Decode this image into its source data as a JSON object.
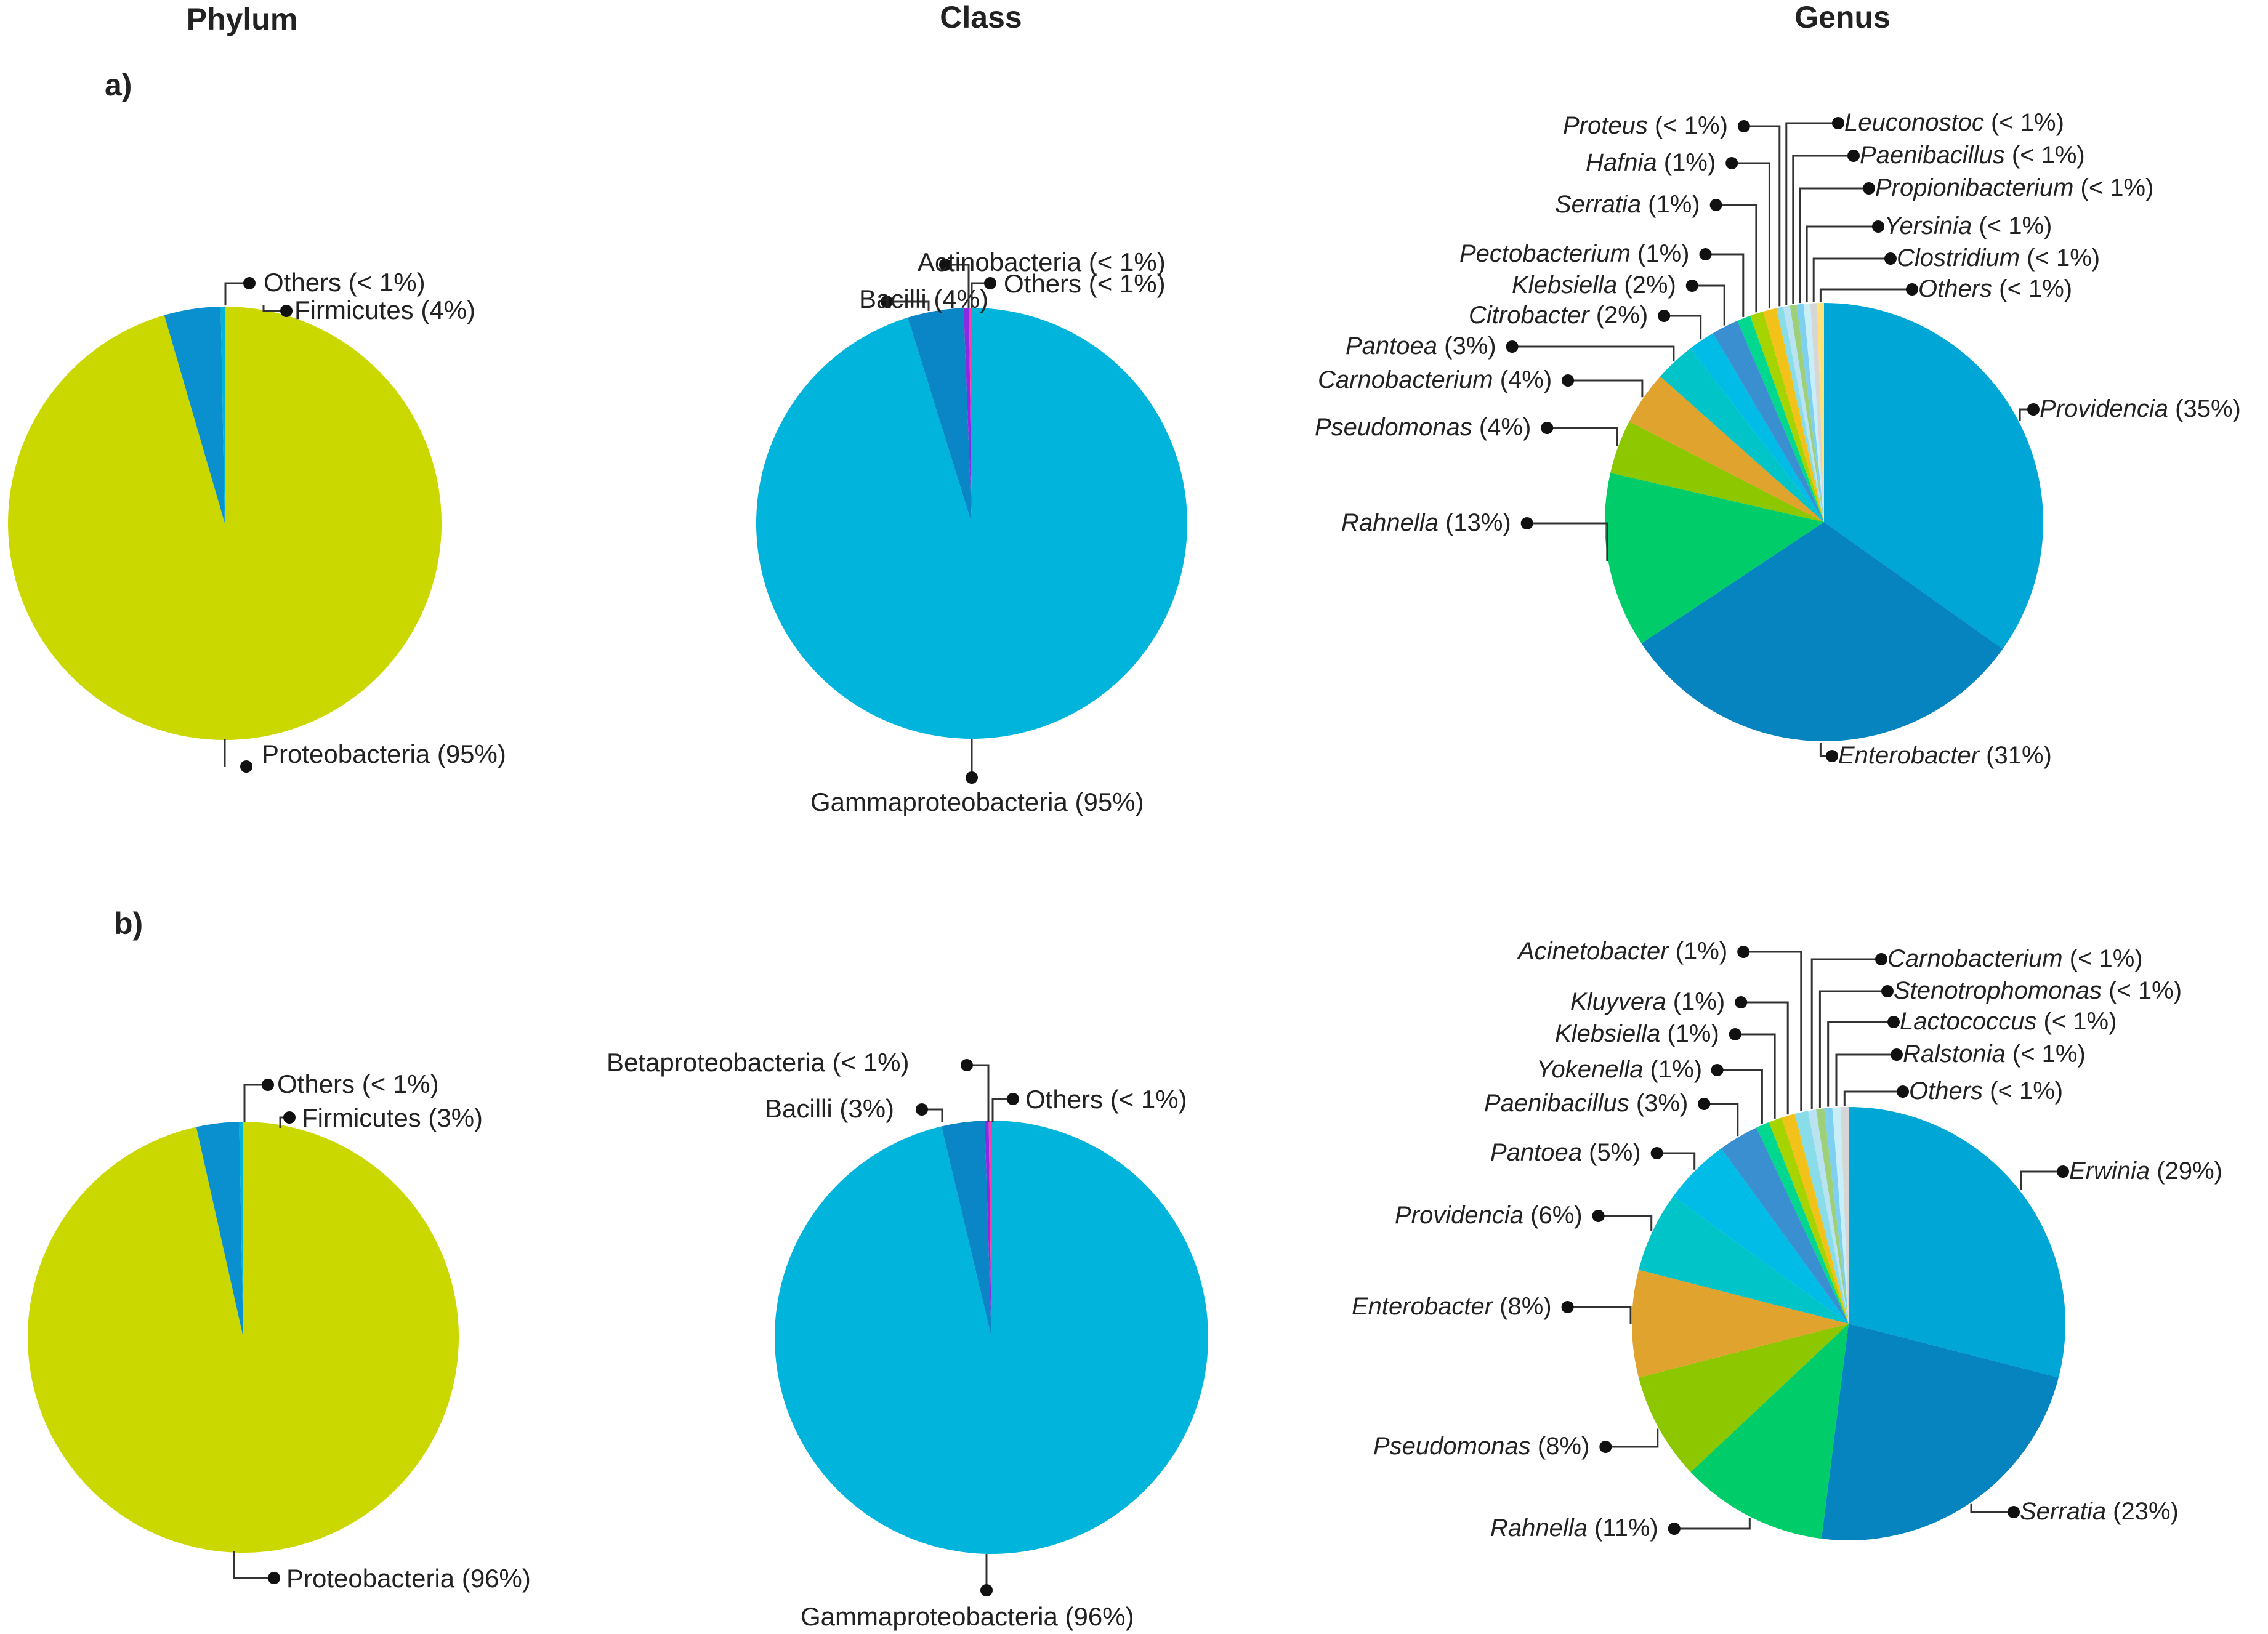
{
  "headers": [
    "Phylum",
    "Class",
    "Genus"
  ],
  "panels": [
    "a)",
    "b)"
  ],
  "colors": {
    "phylum": [
      "#cbd800",
      "#0a8fcf",
      "#00b4d8"
    ],
    "class": [
      "#00b4dc",
      "#0a86c6",
      "#8a2be2",
      "#ff3ea5"
    ],
    "genus": [
      "#00a6d6",
      "#0584c0",
      "#00cc6a",
      "#8cc700",
      "#e0a32e",
      "#00c4c8",
      "#00bce6",
      "#3a8fd0",
      "#00d890",
      "#a6d400",
      "#f3c21a",
      "#88dde8",
      "#b9e2f2",
      "#9ed07a",
      "#7ed0f2",
      "#c8eef8",
      "#d6d6d6",
      "#ffe27a",
      "#55b7e8"
    ]
  },
  "chart_data": [
    {
      "type": "pie",
      "panel": "a)",
      "level": "Phylum",
      "slices": [
        {
          "label": "Proteobacteria",
          "pct_label": "(95%)",
          "value": 95.5
        },
        {
          "label": "Firmicutes",
          "pct_label": "(4%)",
          "value": 4.2
        },
        {
          "label": "Others",
          "pct_label": "(< 1%)",
          "value": 0.3
        }
      ]
    },
    {
      "type": "pie",
      "panel": "a)",
      "level": "Class",
      "slices": [
        {
          "label": "Gammaproteobacteria",
          "pct_label": "(95%)",
          "value": 95.2
        },
        {
          "label": "Bacilli",
          "pct_label": "(4%)",
          "value": 4.2
        },
        {
          "label": "Actinobacteria",
          "pct_label": "(< 1%)",
          "value": 0.4
        },
        {
          "label": "Others",
          "pct_label": "(< 1%)",
          "value": 0.2
        }
      ]
    },
    {
      "type": "pie",
      "panel": "a)",
      "level": "Genus",
      "slices": [
        {
          "label": "Providencia",
          "pct_label": "(35%)",
          "value": 35
        },
        {
          "label": "Enterobacter",
          "pct_label": "(31%)",
          "value": 31
        },
        {
          "label": "Rahnella",
          "pct_label": "(13%)",
          "value": 13
        },
        {
          "label": "Pseudomonas",
          "pct_label": "(4%)",
          "value": 4
        },
        {
          "label": "Carnobacterium",
          "pct_label": "(4%)",
          "value": 4
        },
        {
          "label": "Pantoea",
          "pct_label": "(3%)",
          "value": 3
        },
        {
          "label": "Citrobacter",
          "pct_label": "(2%)",
          "value": 2
        },
        {
          "label": "Klebsiella",
          "pct_label": "(2%)",
          "value": 2
        },
        {
          "label": "Pectobacterium",
          "pct_label": "(1%)",
          "value": 1
        },
        {
          "label": "Serratia",
          "pct_label": "(1%)",
          "value": 1
        },
        {
          "label": "Hafnia",
          "pct_label": "(1%)",
          "value": 1
        },
        {
          "label": "Proteus",
          "pct_label": "(< 1%)",
          "value": 0.5
        },
        {
          "label": "Leuconostoc",
          "pct_label": "(< 1%)",
          "value": 0.5
        },
        {
          "label": "Paenibacillus",
          "pct_label": "(< 1%)",
          "value": 0.5
        },
        {
          "label": "Propionibacterium",
          "pct_label": "(< 1%)",
          "value": 0.5
        },
        {
          "label": "Yersinia",
          "pct_label": "(< 1%)",
          "value": 0.5
        },
        {
          "label": "Clostridium",
          "pct_label": "(< 1%)",
          "value": 0.5
        },
        {
          "label": "Others",
          "pct_label": "(< 1%)",
          "value": 0.5
        }
      ]
    },
    {
      "type": "pie",
      "panel": "b)",
      "level": "Phylum",
      "slices": [
        {
          "label": "Proteobacteria",
          "pct_label": "(96%)",
          "value": 96.5
        },
        {
          "label": "Firmicutes",
          "pct_label": "(3%)",
          "value": 3.2
        },
        {
          "label": "Others",
          "pct_label": "(< 1%)",
          "value": 0.3
        }
      ]
    },
    {
      "type": "pie",
      "panel": "b)",
      "level": "Class",
      "slices": [
        {
          "label": "Gammaproteobacteria",
          "pct_label": "(96%)",
          "value": 96.3
        },
        {
          "label": "Bacilli",
          "pct_label": "(3%)",
          "value": 3.2
        },
        {
          "label": "Betaproteobacteria",
          "pct_label": "(< 1%)",
          "value": 0.3
        },
        {
          "label": "Others",
          "pct_label": "(< 1%)",
          "value": 0.2
        }
      ]
    },
    {
      "type": "pie",
      "panel": "b)",
      "level": "Genus",
      "slices": [
        {
          "label": "Erwinia",
          "pct_label": "(29%)",
          "value": 29
        },
        {
          "label": "Serratia",
          "pct_label": "(23%)",
          "value": 23
        },
        {
          "label": "Rahnella",
          "pct_label": "(11%)",
          "value": 11
        },
        {
          "label": "Pseudomonas",
          "pct_label": "(8%)",
          "value": 8
        },
        {
          "label": "Enterobacter",
          "pct_label": "(8%)",
          "value": 8
        },
        {
          "label": "Providencia",
          "pct_label": "(6%)",
          "value": 6
        },
        {
          "label": "Pantoea",
          "pct_label": "(5%)",
          "value": 5
        },
        {
          "label": "Paenibacillus",
          "pct_label": "(3%)",
          "value": 3
        },
        {
          "label": "Yokenella",
          "pct_label": "(1%)",
          "value": 1
        },
        {
          "label": "Klebsiella",
          "pct_label": "(1%)",
          "value": 1
        },
        {
          "label": "Kluyvera",
          "pct_label": "(1%)",
          "value": 1
        },
        {
          "label": "Acinetobacter",
          "pct_label": "(1%)",
          "value": 1
        },
        {
          "label": "Carnobacterium",
          "pct_label": "(< 1%)",
          "value": 0.6
        },
        {
          "label": "Stenotrophomonas",
          "pct_label": "(< 1%)",
          "value": 0.6
        },
        {
          "label": "Lactococcus",
          "pct_label": "(< 1%)",
          "value": 0.6
        },
        {
          "label": "Ralstonia",
          "pct_label": "(< 1%)",
          "value": 0.6
        },
        {
          "label": "Others",
          "pct_label": "(< 1%)",
          "value": 0.6
        }
      ]
    }
  ]
}
